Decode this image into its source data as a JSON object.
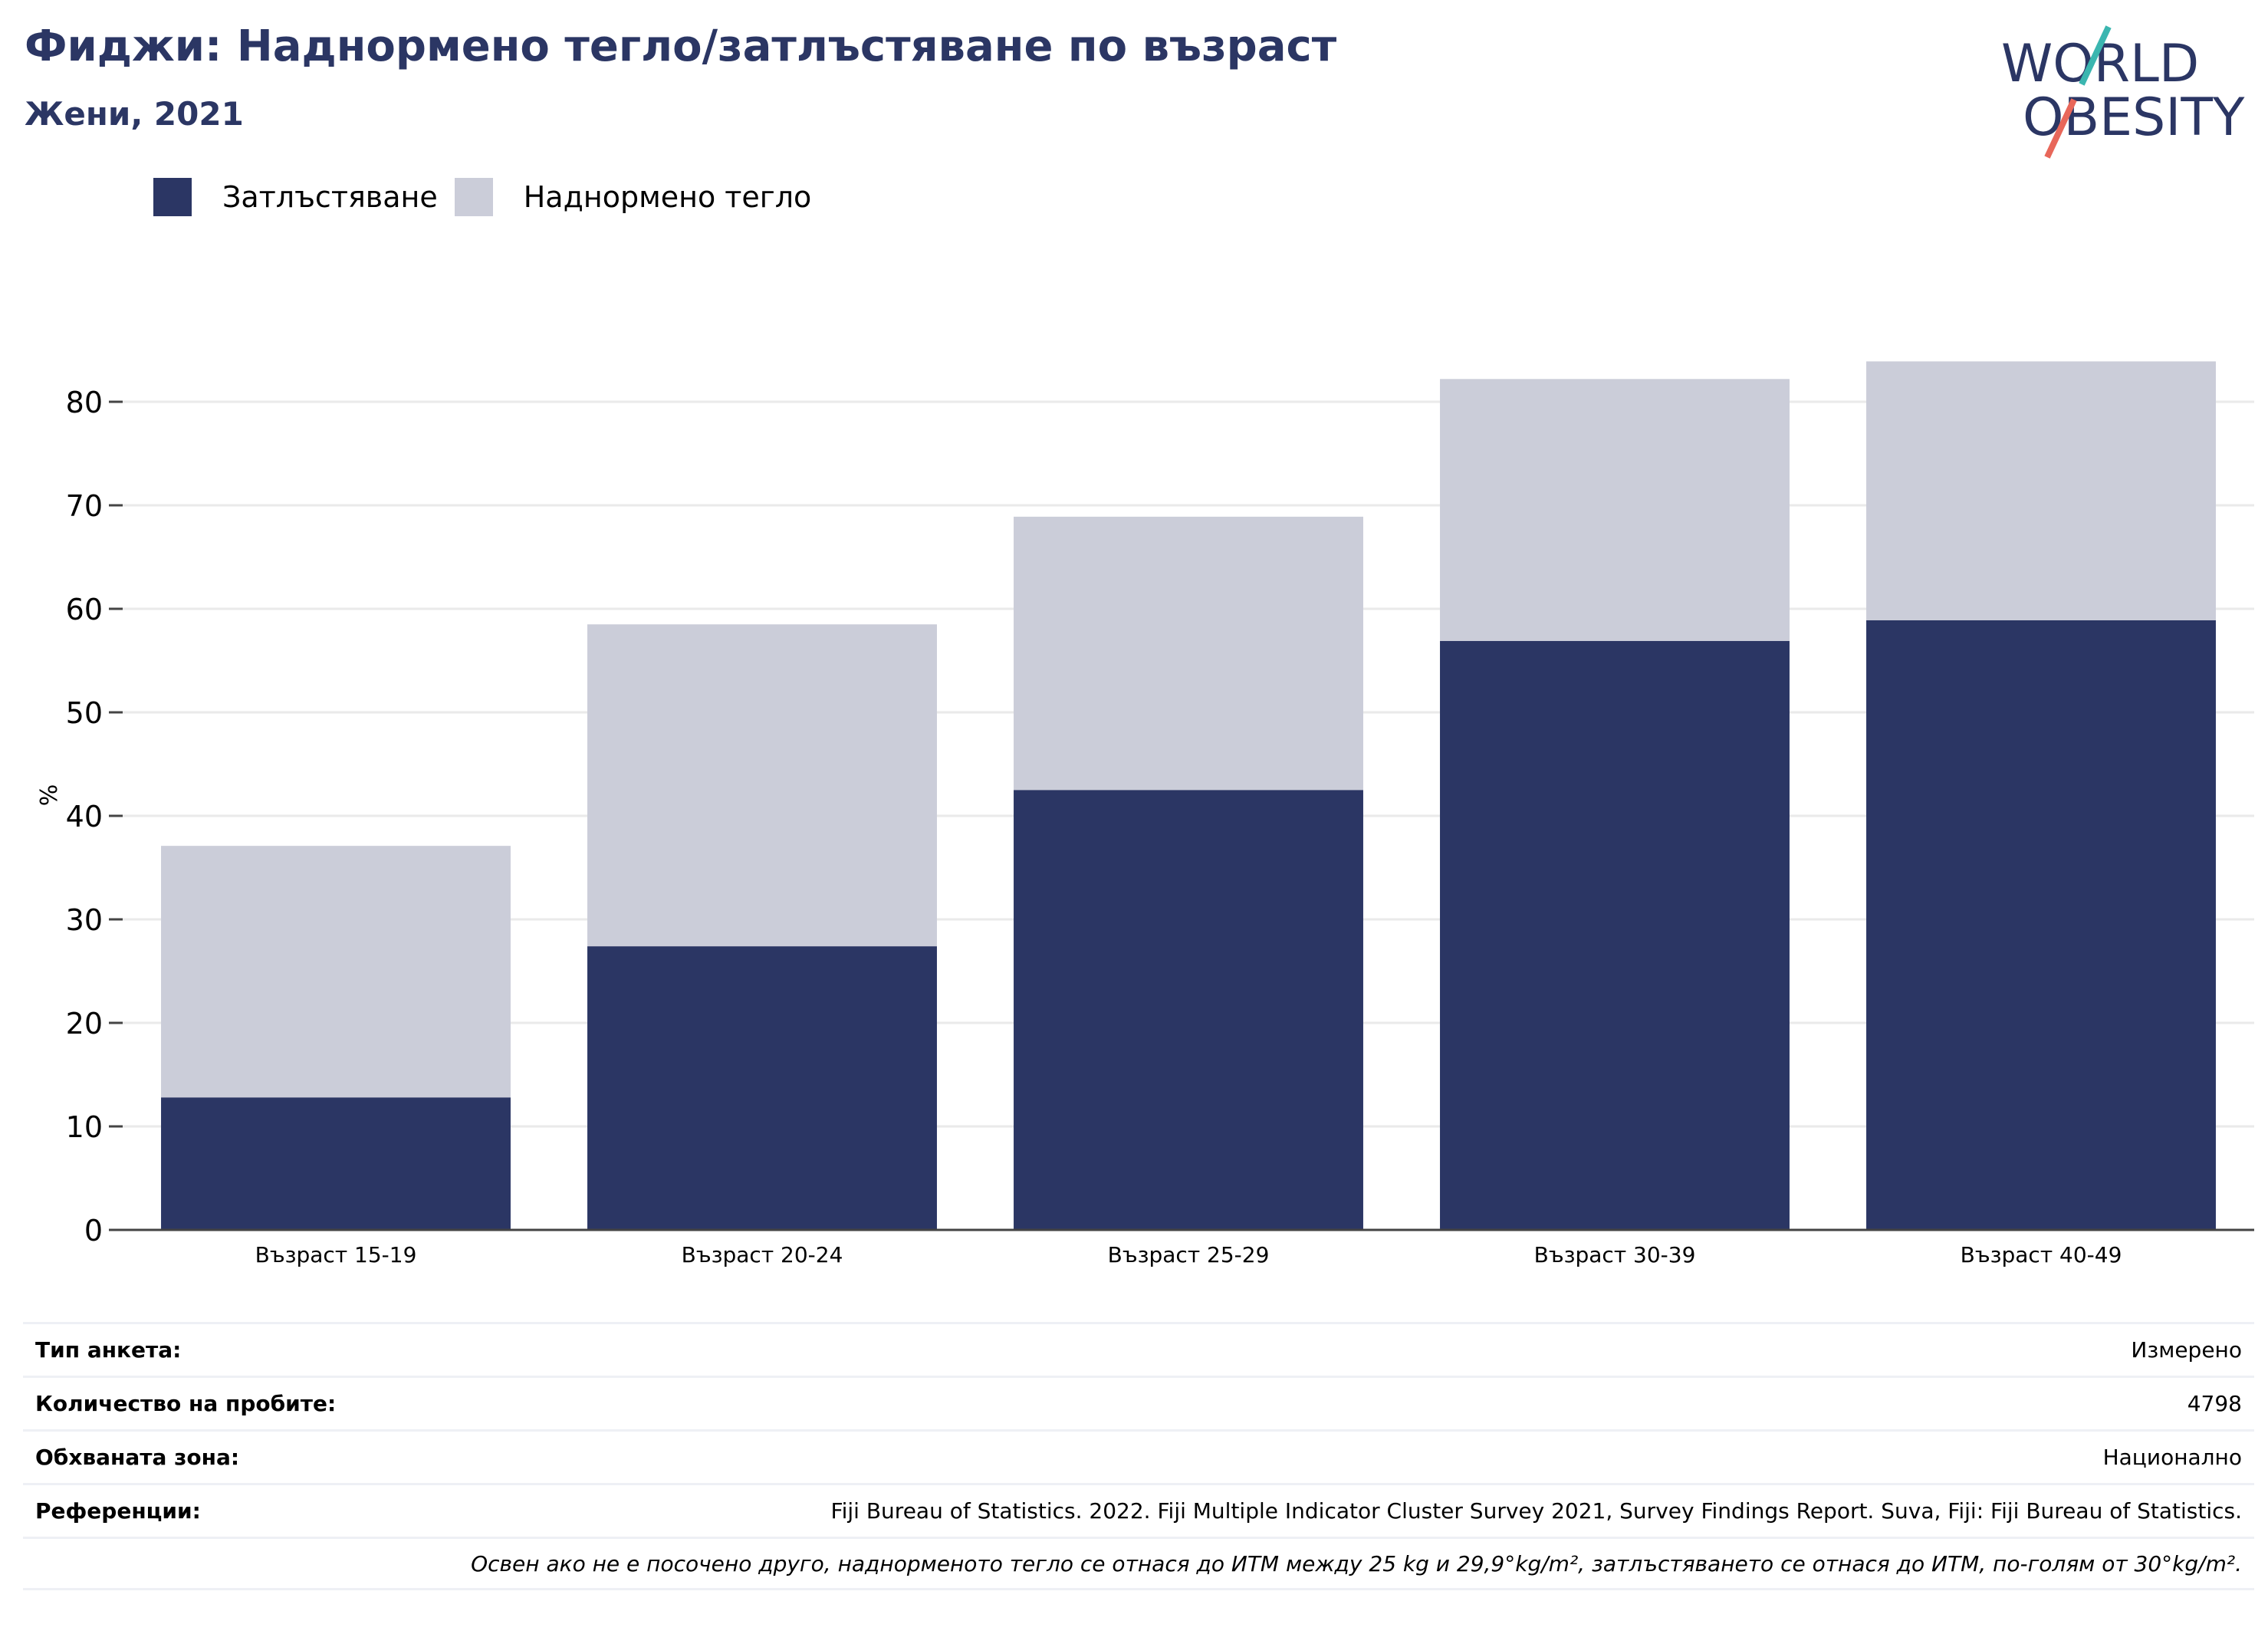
{
  "title": "Фиджи: Наднормено тегло/затлъстяване по възраст",
  "subtitle": "Жени, 2021",
  "logo": {
    "line1": "WORLD",
    "line2": "OBESITY"
  },
  "chart_data": {
    "type": "bar",
    "stacked": true,
    "categories": [
      "Възраст 15-19",
      "Възраст 20-24",
      "Възраст 25-29",
      "Възраст 30-39",
      "Възраст 40-49"
    ],
    "series": [
      {
        "name": "Затлъстяване",
        "color": "#2b3664",
        "values": [
          12.8,
          27.4,
          42.5,
          56.9,
          58.9
        ]
      },
      {
        "name": "Наднормено тегло",
        "color": "#cbcdd9",
        "values": [
          24.3,
          31.1,
          26.4,
          25.3,
          25.0
        ]
      }
    ],
    "ylabel": "%",
    "ylim": [
      0,
      84
    ],
    "yticks": [
      0,
      10,
      20,
      30,
      40,
      50,
      60,
      70,
      80
    ],
    "grid": true,
    "legend": "top-left"
  },
  "info": [
    {
      "key": "Тип анкета:",
      "value": "Измерено"
    },
    {
      "key": "Количество на пробите:",
      "value": "4798"
    },
    {
      "key": "Обхваната зона:",
      "value": "Национално"
    },
    {
      "key": "Референции:",
      "value": "Fiji Bureau of Statistics. 2022. Fiji Multiple Indicator Cluster Survey 2021, Survey Findings Report. Suva, Fiji: Fiji Bureau of Statistics."
    }
  ],
  "note": "Освен ако не е посочено друго, наднорменото тегло се отнася до ИТМ между 25 kg и 29,9°kg/m², затлъстяването се отнася до ИТМ, по-голям от 30°kg/m²."
}
